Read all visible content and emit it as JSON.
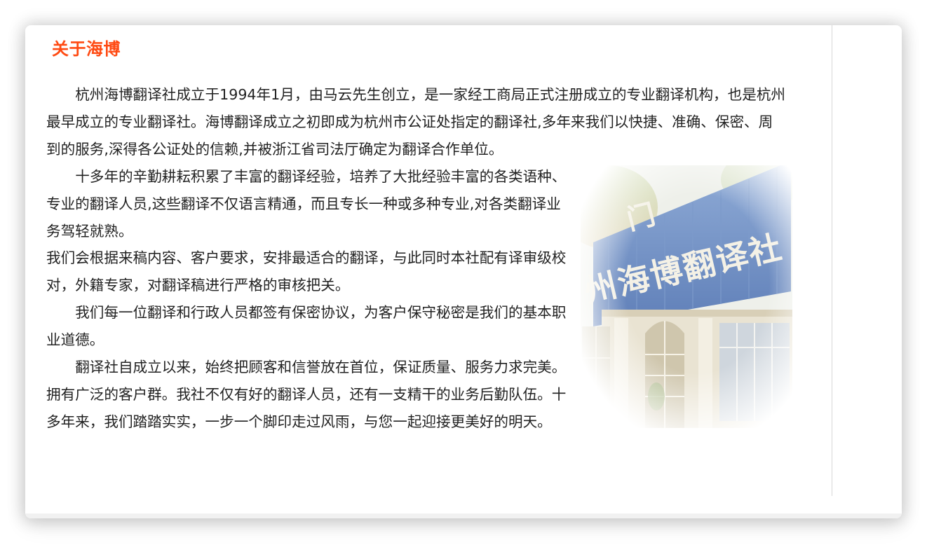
{
  "section": {
    "title": "关于海博"
  },
  "article": {
    "paragraphs": [
      "杭州海博翻译社成立于1994年1月，由马云先生创立，是一家经工商局正式注册成立的专业翻译机构，也是杭州最早成立的专业翻译社。海博翻译成立之初即成为杭州市公证处指定的翻译社,多年来我们以快捷、准确、保密、周到的服务,深得各公证处的信赖,并被浙江省司法厅确定为翻译合作单位。",
      "十多年的辛勤耕耘积累了丰富的翻译经验，培养了大批经验丰富的各类语种、专业的翻译人员,这些翻译不仅语言精通，而且专长一种或多种专业,对各类翻译业务驾轻就熟。",
      "我们会根据来稿内容、客户要求，安排最适合的翻译，与此同时本社配有译审级校对，外籍专家，对翻译稿进行严格的审核把关。",
      "我们每一位翻译和行政人员都签有保密协议，为客户保守秘密是我们的基本职业道德。",
      "翻译社自成立以来，始终把顾客和信誉放在首位，保证质量、服务力求完美。拥有广泛的客户群。我社不仅有好的翻译人员，还有一支精干的业务后勤队伍。十多年来，我们踏踏实实，一步一个脚印走过风雨，与您一起迎接更美好的明天。"
    ]
  },
  "photo": {
    "sign_text": "州海博翻译社",
    "sign_top_text": "门"
  },
  "colors": {
    "title": "#ff4a12",
    "body_text": "#222222",
    "sign_blue": "#6f8fc4",
    "sign_lettering": "#f4f1e6"
  }
}
